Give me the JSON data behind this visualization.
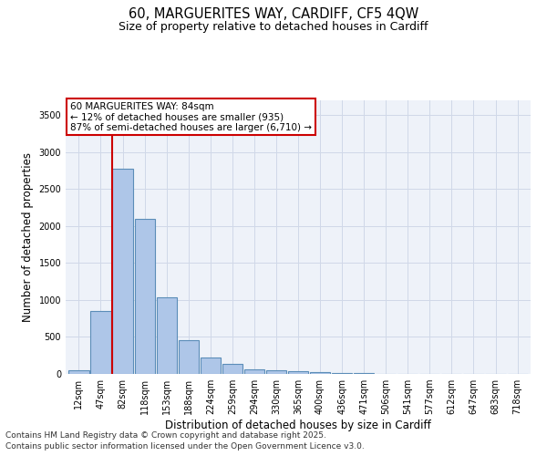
{
  "title_line1": "60, MARGUERITES WAY, CARDIFF, CF5 4QW",
  "title_line2": "Size of property relative to detached houses in Cardiff",
  "categories": [
    "12sqm",
    "47sqm",
    "82sqm",
    "118sqm",
    "153sqm",
    "188sqm",
    "224sqm",
    "259sqm",
    "294sqm",
    "330sqm",
    "365sqm",
    "400sqm",
    "436sqm",
    "471sqm",
    "506sqm",
    "541sqm",
    "577sqm",
    "612sqm",
    "647sqm",
    "683sqm",
    "718sqm"
  ],
  "values": [
    55,
    850,
    2780,
    2100,
    1030,
    460,
    225,
    140,
    60,
    55,
    35,
    20,
    15,
    10,
    5,
    5,
    3,
    2,
    2,
    1,
    1
  ],
  "bar_color": "#aec6e8",
  "bar_edge_color": "#5b8db8",
  "bar_linewidth": 0.8,
  "vline_index": 2,
  "vline_color": "#cc0000",
  "vline_linewidth": 1.5,
  "annotation_line1": "60 MARGUERITES WAY: 84sqm",
  "annotation_line2": "← 12% of detached houses are smaller (935)",
  "annotation_line3": "87% of semi-detached houses are larger (6,710) →",
  "annotation_box_color": "#cc0000",
  "ylabel": "Number of detached properties",
  "xlabel": "Distribution of detached houses by size in Cardiff",
  "ylim": [
    0,
    3700
  ],
  "yticks": [
    0,
    500,
    1000,
    1500,
    2000,
    2500,
    3000,
    3500
  ],
  "grid_color": "#d0d8e8",
  "bg_color": "#eef2f9",
  "footer_line1": "Contains HM Land Registry data © Crown copyright and database right 2025.",
  "footer_line2": "Contains public sector information licensed under the Open Government Licence v3.0.",
  "title_fontsize": 10.5,
  "subtitle_fontsize": 9,
  "label_fontsize": 8.5,
  "tick_fontsize": 7,
  "annotation_fontsize": 7.5,
  "footer_fontsize": 6.5
}
